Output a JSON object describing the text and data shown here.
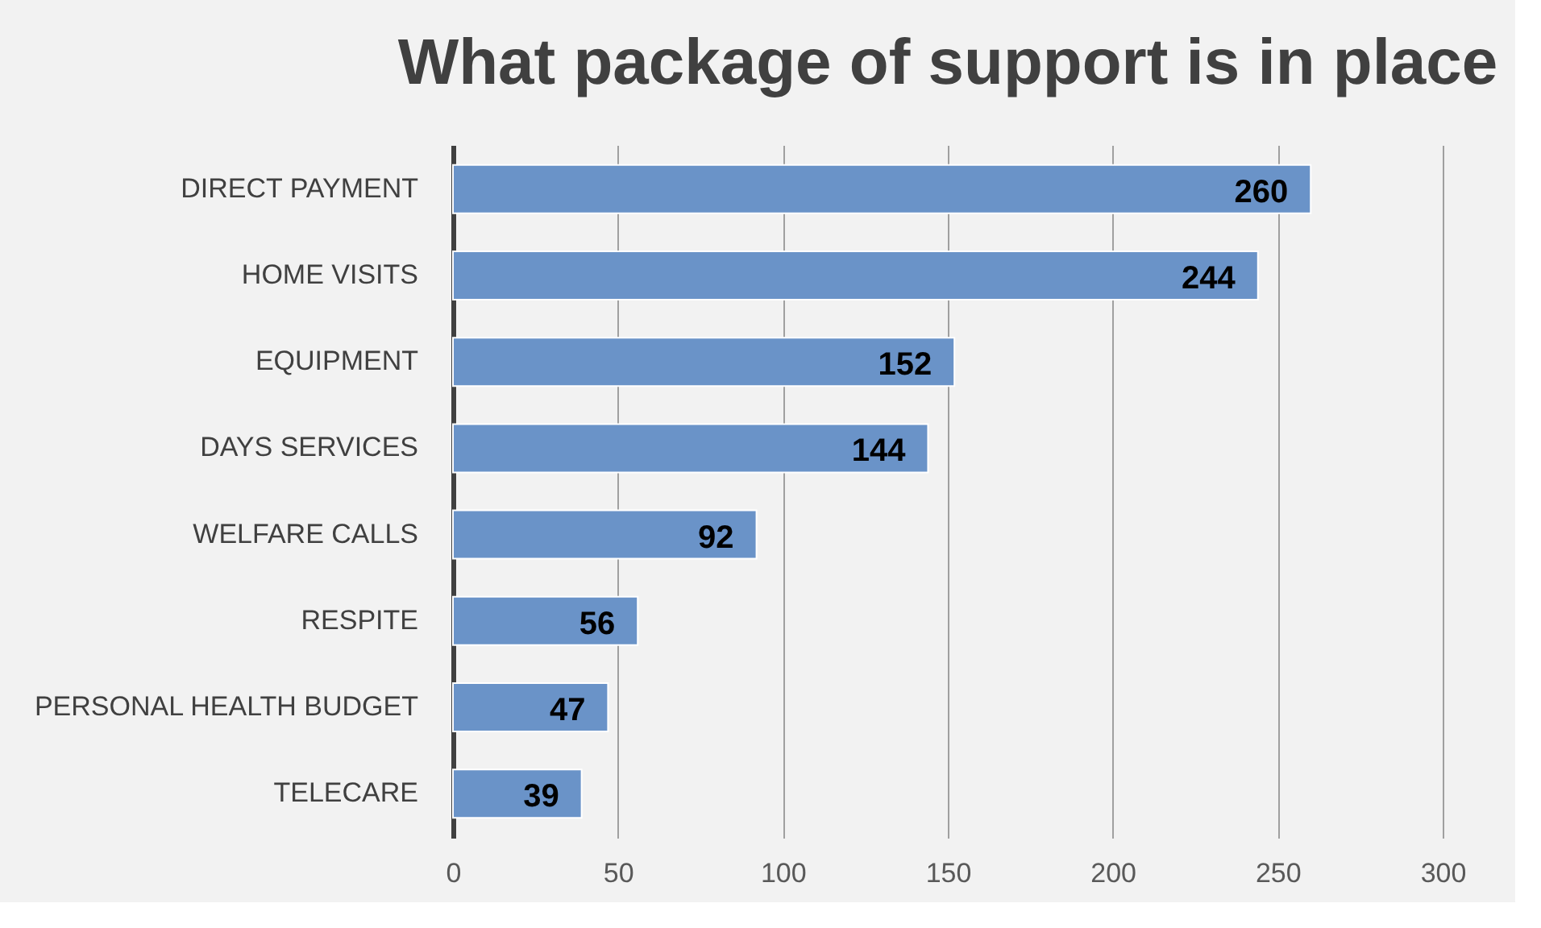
{
  "chart_data": {
    "type": "bar",
    "title": "What package of support is in place",
    "orientation": "horizontal",
    "categories": [
      "DIRECT PAYMENT",
      "HOME VISITS",
      "EQUIPMENT",
      "DAYS SERVICES",
      "WELFARE CALLS",
      "RESPITE",
      "PERSONAL HEALTH BUDGET",
      "TELECARE"
    ],
    "values": [
      260,
      244,
      152,
      144,
      92,
      56,
      47,
      39
    ],
    "color": "#6a93c8",
    "xlim": [
      0,
      300
    ],
    "xticks": [
      0,
      50,
      100,
      150,
      200,
      250,
      300
    ],
    "grid": "x",
    "data_labels": true
  }
}
